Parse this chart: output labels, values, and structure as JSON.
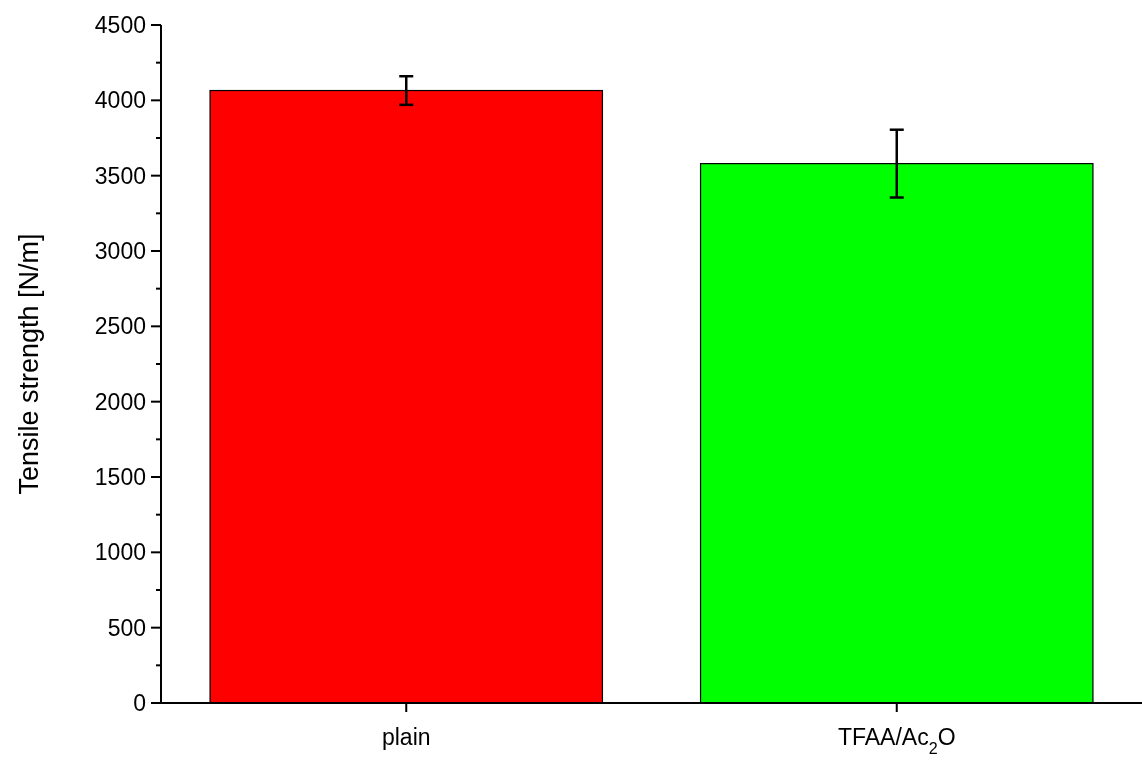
{
  "chart_data": {
    "type": "bar",
    "ylabel": "Tensile strength [N/m]",
    "categories": [
      "plain",
      "TFAA/Ac$_{2}$O"
    ],
    "values": [
      4065,
      3580
    ],
    "colors": [
      "#ff0000",
      "#00ff00"
    ],
    "errors": [
      95,
      225
    ],
    "ylim": [
      0,
      4500
    ],
    "yticks": [
      0,
      500,
      1000,
      1500,
      2000,
      2500,
      3000,
      3500,
      4000,
      4500
    ],
    "grid": false
  }
}
